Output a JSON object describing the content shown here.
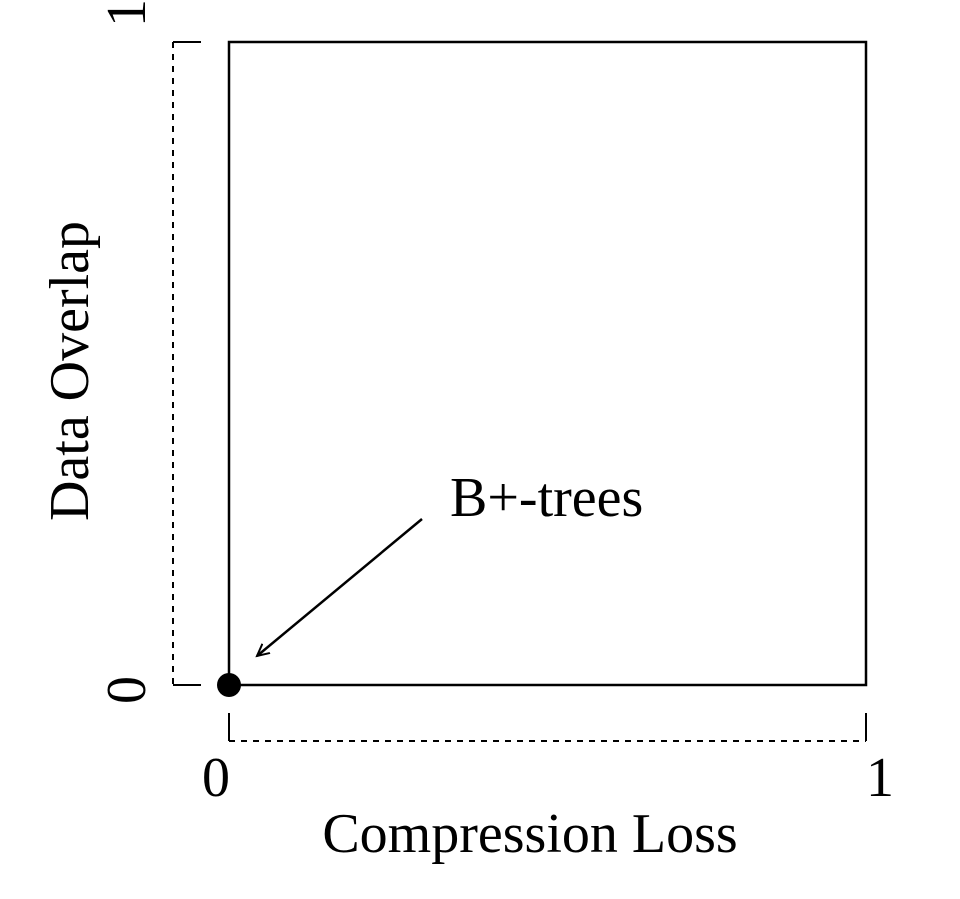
{
  "chart_data": {
    "type": "scatter",
    "xlabel": "Compression Loss",
    "ylabel": "Data Overlap",
    "xlim": [
      0,
      1
    ],
    "ylim": [
      0,
      1
    ],
    "x_ticks": [
      "0",
      "1"
    ],
    "y_ticks": [
      "0",
      "1"
    ],
    "grid": false,
    "points": [
      {
        "x": 0,
        "y": 0,
        "label": "B+-trees"
      }
    ],
    "annotation": {
      "text": "B+-trees",
      "points_to": {
        "x": 0,
        "y": 0
      }
    }
  }
}
